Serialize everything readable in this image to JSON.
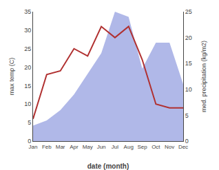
{
  "chart_data": {
    "type": "line",
    "xlabel": "date (month)",
    "ylabel": "max temp (C)",
    "y2label": "med. precipitation (kg/m2)",
    "categories": [
      "Jan",
      "Feb",
      "Mar",
      "Apr",
      "May",
      "Jun",
      "Jul",
      "Aug",
      "Sep",
      "Oct",
      "Nov",
      "Dec"
    ],
    "series": [
      {
        "type": "area",
        "axis": "y2",
        "color": "#b0b8e8",
        "values": [
          3,
          4,
          6,
          9,
          13,
          17,
          25,
          24,
          14,
          19,
          19,
          11
        ]
      },
      {
        "type": "line",
        "color": "#b03030",
        "values": [
          6,
          18,
          19,
          25,
          23,
          31,
          28,
          31,
          22,
          10,
          9,
          9
        ]
      }
    ],
    "ylim": [
      0,
      35
    ],
    "yticks": [
      0,
      5,
      10,
      15,
      20,
      25,
      30,
      35
    ],
    "y2lim": [
      0,
      25
    ],
    "y2ticks": [
      0,
      5,
      10,
      15,
      20,
      25
    ],
    "grid": false
  }
}
